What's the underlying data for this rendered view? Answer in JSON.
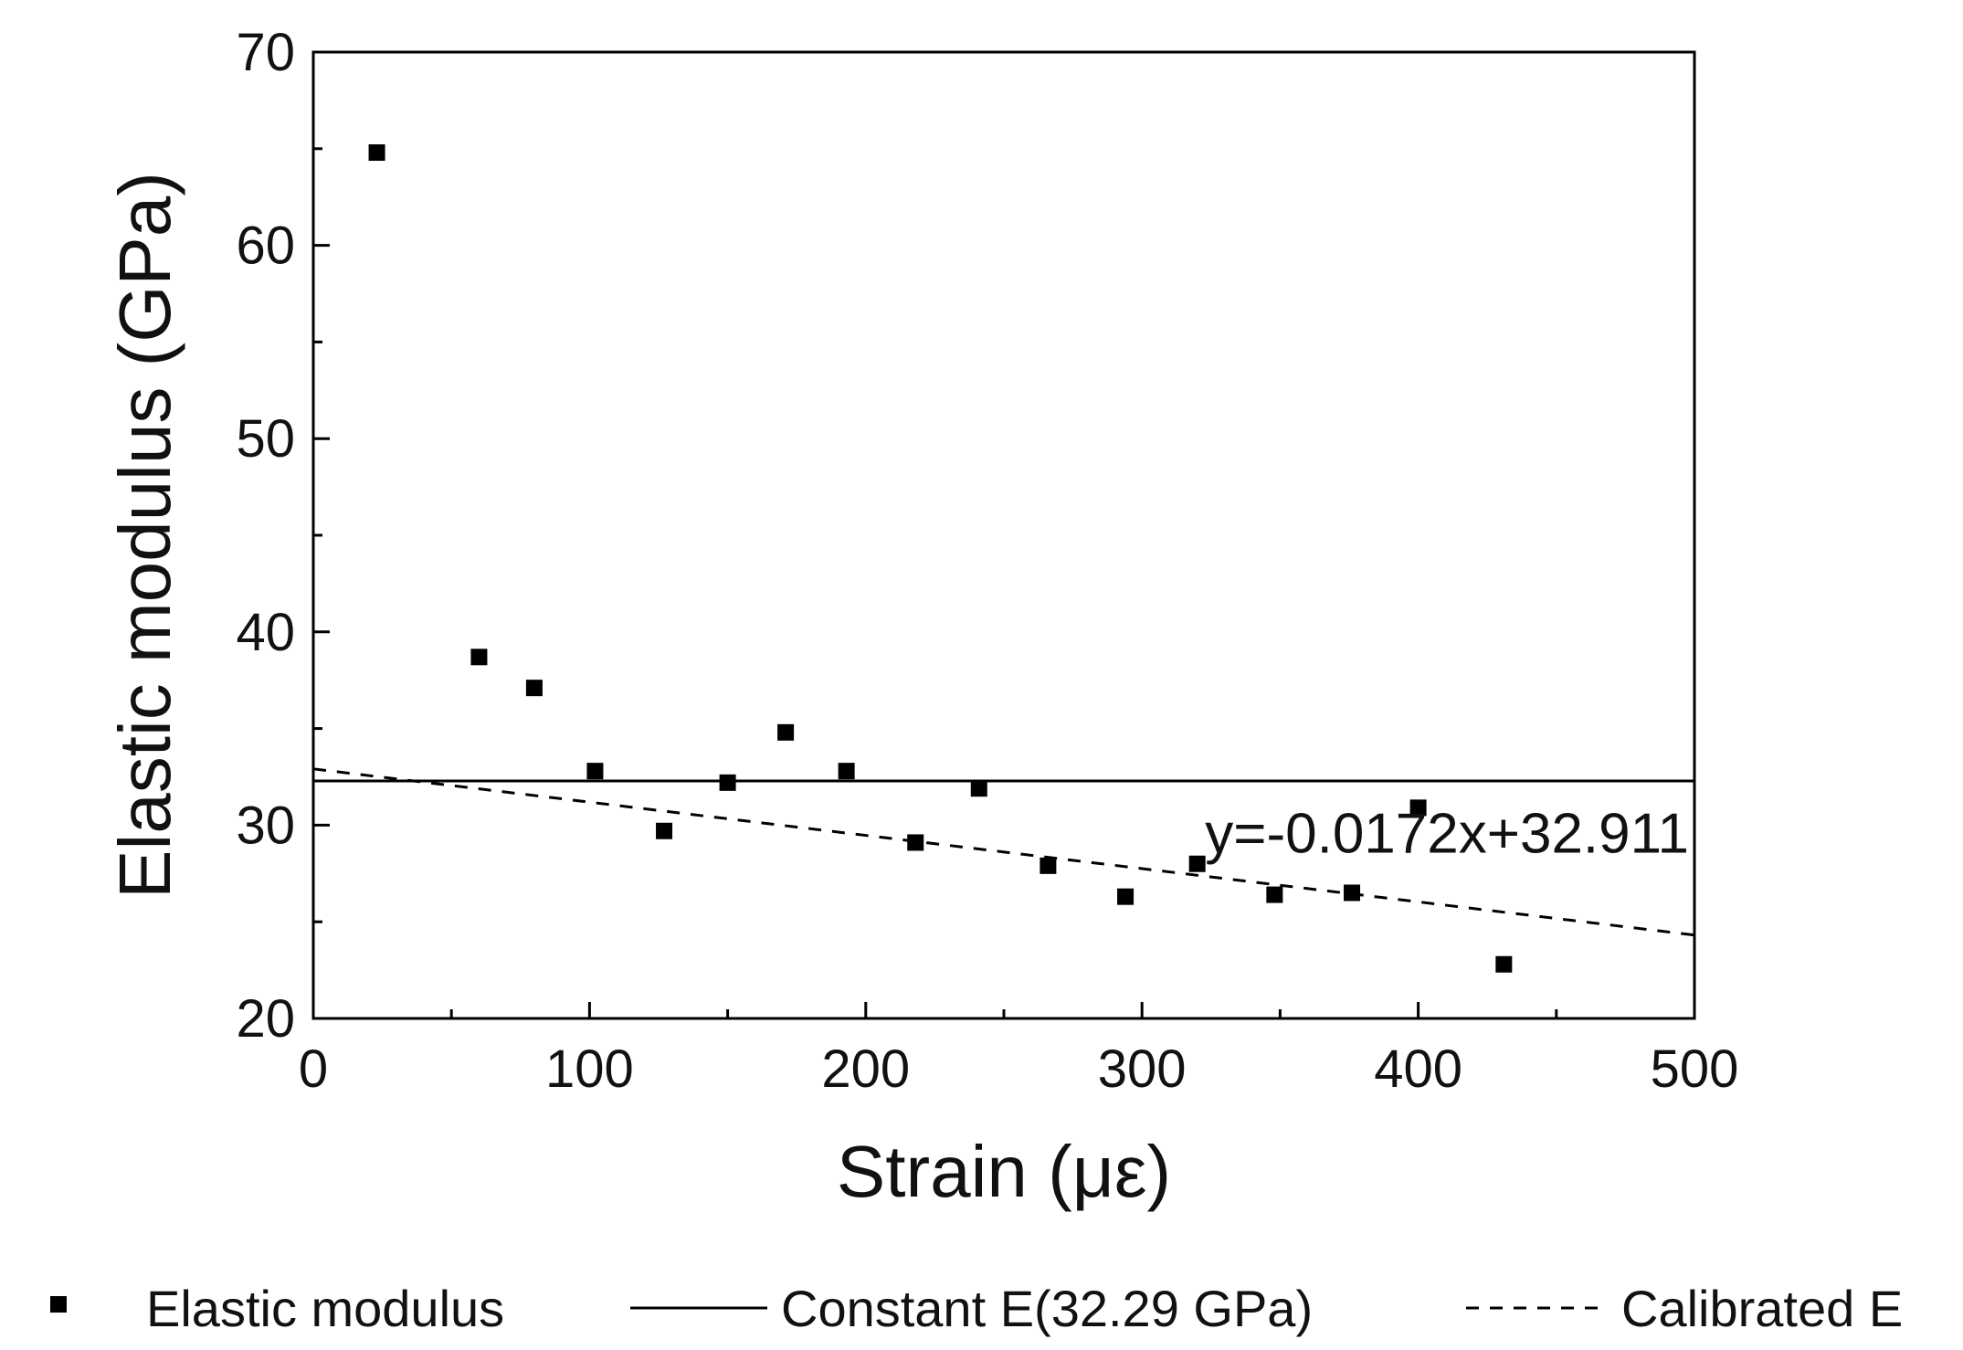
{
  "chart_data": {
    "type": "scatter",
    "xlabel": "Strain (με)",
    "ylabel": "Elastic modulus (GPa)",
    "xlim": [
      0,
      500
    ],
    "ylim": [
      20,
      70
    ],
    "xticks": [
      0,
      100,
      200,
      300,
      400,
      500
    ],
    "yticks": [
      20,
      30,
      40,
      50,
      60,
      70
    ],
    "grid": false,
    "legend_position": "bottom",
    "series": [
      {
        "name": "Elastic modulus",
        "kind": "points",
        "marker": "square",
        "color": "#000000",
        "x": [
          23,
          60,
          80,
          102,
          127,
          150,
          171,
          193,
          218,
          241,
          266,
          294,
          320,
          348,
          376,
          400,
          431
        ],
        "y": [
          64.8,
          38.7,
          37.1,
          32.8,
          29.7,
          32.2,
          34.8,
          32.8,
          29.1,
          31.9,
          27.9,
          26.3,
          28.0,
          26.4,
          26.5,
          30.9,
          22.8
        ]
      },
      {
        "name": "Constant E(32.29 GPa)",
        "kind": "line",
        "style": "solid",
        "color": "#000000",
        "x": [
          0,
          500
        ],
        "y": [
          32.29,
          32.29
        ]
      },
      {
        "name": "Calibrated E",
        "kind": "line",
        "style": "dashed",
        "color": "#000000",
        "x": [
          0,
          500
        ],
        "y": [
          32.911,
          24.311
        ]
      }
    ],
    "annotations": [
      {
        "text": "y=-0.0172x+32.911",
        "x": 500,
        "y": 30
      }
    ]
  }
}
